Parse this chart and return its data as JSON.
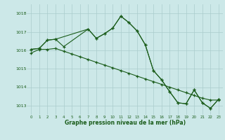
{
  "xlabel": "Graphe pression niveau de la mer (hPa)",
  "background_color": "#cce8e8",
  "grid_color": "#aacccc",
  "line_color": "#1a5c1a",
  "ylim": [
    1012.5,
    1018.5
  ],
  "xlim": [
    -0.5,
    23.5
  ],
  "yticks": [
    1013,
    1014,
    1015,
    1016,
    1017,
    1018
  ],
  "xticks": [
    0,
    1,
    2,
    3,
    4,
    5,
    6,
    7,
    8,
    9,
    10,
    11,
    12,
    13,
    14,
    15,
    16,
    17,
    18,
    19,
    20,
    21,
    22,
    23
  ],
  "series1_x": [
    0,
    1,
    2,
    3,
    7,
    8,
    9,
    10,
    11,
    12,
    13,
    14,
    15,
    16,
    17,
    18,
    19,
    20,
    21,
    22,
    23
  ],
  "series1_y": [
    1016.05,
    1016.1,
    1016.55,
    1016.6,
    1017.15,
    1016.65,
    1016.9,
    1017.2,
    1017.85,
    1017.5,
    1017.05,
    1016.3,
    1014.9,
    1014.4,
    1013.75,
    1013.15,
    1013.1,
    1013.85,
    1013.15,
    1012.85,
    1013.35
  ],
  "series2_x": [
    0,
    1,
    2,
    3,
    4,
    7,
    8,
    9,
    10,
    11,
    12,
    13,
    14,
    15,
    16,
    17,
    18,
    19,
    20,
    21,
    22,
    23
  ],
  "series2_y": [
    1016.05,
    1016.1,
    1016.55,
    1016.6,
    1016.2,
    1017.15,
    1016.65,
    1016.9,
    1017.2,
    1017.85,
    1017.5,
    1017.05,
    1016.3,
    1014.9,
    1014.4,
    1013.75,
    1013.15,
    1013.1,
    1013.85,
    1013.15,
    1012.85,
    1013.35
  ],
  "series3_x": [
    0,
    1,
    2,
    3,
    4,
    5,
    6,
    7,
    8,
    9,
    10,
    11,
    12,
    13,
    14,
    15,
    16,
    17,
    18,
    19,
    20,
    21,
    22,
    23
  ],
  "series3_y": [
    1015.85,
    1016.05,
    1016.05,
    1016.1,
    1015.95,
    1015.8,
    1015.65,
    1015.5,
    1015.35,
    1015.2,
    1015.05,
    1014.9,
    1014.75,
    1014.6,
    1014.45,
    1014.3,
    1014.15,
    1014.0,
    1013.85,
    1013.7,
    1013.55,
    1013.4,
    1013.3,
    1013.3
  ]
}
